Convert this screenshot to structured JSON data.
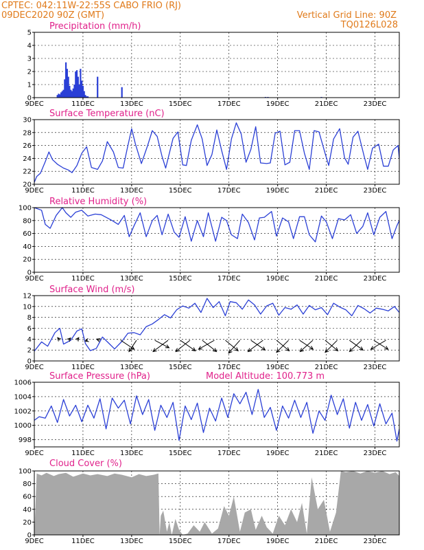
{
  "header": {
    "line1": "CPTEC:   042:11W-22:55S   CABO FRIO (RJ)",
    "line2": "09DEC2020 90Z (GMT)",
    "grid_note": "Vertical Grid Line: 90Z",
    "code": "TQ0126L028"
  },
  "colors": {
    "header": "#e07a1a",
    "title": "#e0208a",
    "series": "#2a3fd6",
    "cloud": "#a8a8a8"
  },
  "x_axis": {
    "domain_days": [
      0,
      15
    ],
    "ticks": [
      "9DEC",
      "11DEC",
      "13DEC",
      "15DEC",
      "17DEC",
      "19DEC",
      "21DEC",
      "23DEC"
    ],
    "tick_days": [
      0,
      2,
      4,
      6,
      8,
      10,
      12,
      14
    ]
  },
  "chart_data": [
    {
      "id": "precip",
      "type": "bar",
      "title": "Precipitation (mm/h)",
      "ylim": [
        0,
        5
      ],
      "yticks": [
        0,
        1,
        2,
        3,
        4,
        5
      ],
      "x_unit": "days since 9DEC 18Z",
      "x": [
        0.95,
        1.0,
        1.05,
        1.1,
        1.15,
        1.2,
        1.25,
        1.3,
        1.35,
        1.4,
        1.45,
        1.5,
        1.55,
        1.6,
        1.65,
        1.7,
        1.75,
        1.8,
        1.85,
        1.9,
        1.95,
        2.0,
        2.05,
        2.1,
        2.15,
        2.2,
        2.6,
        3.6,
        9.5,
        9.6,
        11.8
      ],
      "values": [
        0.2,
        0.3,
        0.25,
        0.4,
        0.5,
        0.6,
        1.4,
        2.7,
        2.2,
        1.6,
        0.9,
        0.6,
        0.5,
        0.7,
        1.0,
        2.0,
        2.1,
        1.6,
        1.0,
        2.2,
        1.3,
        0.9,
        0.5,
        0.2,
        0.1,
        0.1,
        1.6,
        0.8,
        0.05,
        0.05,
        0.05
      ]
    },
    {
      "id": "temp",
      "type": "line",
      "title": "Surface Temperature (nC)",
      "ylim": [
        20,
        30
      ],
      "yticks": [
        20,
        22,
        24,
        26,
        28,
        30
      ],
      "x": [
        0,
        0.1,
        0.25,
        0.45,
        0.6,
        0.75,
        0.95,
        1.2,
        1.4,
        1.55,
        1.75,
        1.95,
        2.15,
        2.35,
        2.6,
        2.8,
        3.0,
        3.25,
        3.45,
        3.65,
        3.8,
        4.0,
        4.15,
        4.4,
        4.65,
        4.85,
        5.05,
        5.25,
        5.4,
        5.7,
        5.9,
        6.1,
        6.25,
        6.45,
        6.7,
        6.9,
        7.1,
        7.3,
        7.5,
        7.7,
        7.9,
        8.1,
        8.3,
        8.5,
        8.7,
        8.9,
        9.1,
        9.3,
        9.55,
        9.7,
        9.9,
        10.1,
        10.3,
        10.5,
        10.7,
        10.9,
        11.1,
        11.3,
        11.5,
        11.7,
        11.95,
        12.1,
        12.3,
        12.55,
        12.75,
        12.9,
        13.1,
        13.3,
        13.55,
        13.7,
        13.9,
        14.15,
        14.35,
        14.55,
        14.75,
        14.95,
        15.0
      ],
      "values": [
        20.3,
        21.2,
        21.7,
        23.5,
        25.0,
        23.8,
        23.1,
        22.5,
        22.2,
        21.8,
        22.9,
        24.8,
        25.8,
        22.6,
        22.3,
        23.6,
        26.6,
        25.0,
        22.6,
        22.5,
        25.2,
        28.6,
        26.3,
        23.2,
        25.9,
        28.3,
        27.4,
        24.3,
        22.5,
        27.1,
        28.1,
        23.0,
        22.9,
        26.8,
        29.2,
        27.0,
        22.9,
        24.6,
        28.4,
        25.2,
        22.3,
        27.0,
        29.5,
        27.8,
        23.4,
        25.4,
        28.9,
        23.3,
        23.2,
        23.3,
        27.9,
        28.2,
        23.0,
        23.4,
        28.3,
        28.3,
        24.8,
        22.3,
        28.3,
        28.1,
        24.8,
        22.9,
        27.0,
        28.6,
        24.1,
        23.1,
        27.3,
        28.2,
        24.4,
        22.3,
        25.6,
        26.2,
        22.8,
        22.8,
        25.3,
        26.0,
        24.0
      ]
    },
    {
      "id": "rh",
      "type": "line",
      "title": "Relative Humidity (%)",
      "ylim": [
        0,
        100
      ],
      "yticks": [
        0,
        20,
        40,
        60,
        80,
        100
      ],
      "x": [
        0,
        0.3,
        0.45,
        0.65,
        0.9,
        1.15,
        1.3,
        1.5,
        1.7,
        1.95,
        2.2,
        2.5,
        2.75,
        2.95,
        3.2,
        3.45,
        3.7,
        3.9,
        4.1,
        4.35,
        4.6,
        4.85,
        5.05,
        5.25,
        5.5,
        5.75,
        5.95,
        6.2,
        6.45,
        6.7,
        6.95,
        7.15,
        7.45,
        7.7,
        7.9,
        8.1,
        8.35,
        8.55,
        8.8,
        9.05,
        9.25,
        9.45,
        9.75,
        9.95,
        10.2,
        10.45,
        10.65,
        10.9,
        11.1,
        11.3,
        11.55,
        11.8,
        12.0,
        12.25,
        12.5,
        12.75,
        13.0,
        13.25,
        13.5,
        13.7,
        13.95,
        14.2,
        14.45,
        14.7,
        14.9,
        15.0
      ],
      "values": [
        100,
        96,
        74,
        68,
        88,
        100,
        92,
        85,
        93,
        96,
        87,
        90,
        89,
        85,
        80,
        74,
        88,
        55,
        72,
        92,
        55,
        80,
        88,
        58,
        90,
        62,
        54,
        86,
        48,
        80,
        55,
        92,
        48,
        85,
        80,
        58,
        52,
        90,
        77,
        50,
        84,
        85,
        94,
        56,
        84,
        78,
        52,
        86,
        86,
        58,
        47,
        87,
        78,
        52,
        83,
        81,
        89,
        60,
        71,
        92,
        58,
        85,
        94,
        52,
        72,
        80
      ]
    },
    {
      "id": "wind",
      "type": "line",
      "title": "Surface Wind (m/s)",
      "ylim": [
        0,
        12
      ],
      "yticks": [
        0,
        2,
        4,
        6,
        8,
        10,
        12
      ],
      "x": [
        0,
        0.3,
        0.55,
        0.85,
        1.05,
        1.2,
        1.5,
        1.75,
        1.95,
        2.1,
        2.3,
        2.55,
        2.8,
        3.05,
        3.3,
        3.6,
        3.85,
        4.1,
        4.35,
        4.6,
        4.85,
        5.1,
        5.35,
        5.6,
        5.85,
        6.1,
        6.35,
        6.6,
        6.85,
        7.1,
        7.35,
        7.6,
        7.85,
        8.05,
        8.3,
        8.55,
        8.8,
        9.05,
        9.3,
        9.55,
        9.8,
        10.05,
        10.3,
        10.55,
        10.8,
        11.05,
        11.3,
        11.55,
        11.8,
        12.05,
        12.3,
        12.55,
        12.8,
        13.05,
        13.3,
        13.55,
        13.8,
        14.05,
        14.3,
        14.55,
        14.8,
        15.0
      ],
      "values": [
        1.8,
        3.5,
        2.7,
        5.2,
        6.0,
        3.1,
        3.8,
        5.5,
        5.9,
        3.2,
        1.9,
        2.3,
        4.4,
        3.3,
        2.2,
        3.6,
        5.1,
        5.2,
        4.8,
        6.3,
        6.8,
        7.6,
        8.5,
        7.9,
        9.4,
        10.1,
        9.7,
        10.6,
        8.9,
        11.5,
        9.8,
        10.9,
        8.3,
        10.9,
        10.7,
        9.5,
        11.2,
        10.3,
        8.6,
        10.1,
        10.6,
        8.4,
        9.8,
        9.5,
        10.3,
        8.6,
        10.2,
        9.4,
        9.8,
        8.5,
        10.6,
        9.9,
        9.4,
        8.3,
        10.2,
        9.6,
        8.8,
        9.7,
        9.5,
        9.2,
        10.0,
        8.9
      ]
    },
    {
      "id": "pressure",
      "type": "line",
      "title": "Surface Pressure (hPa)",
      "note": "Model Altitude: 100.773 m",
      "ylim": [
        997,
        1006
      ],
      "yticks": [
        998,
        1000,
        1002,
        1004,
        1006
      ],
      "x": [
        0,
        0.2,
        0.45,
        0.7,
        0.95,
        1.2,
        1.45,
        1.7,
        1.95,
        2.2,
        2.45,
        2.7,
        2.95,
        3.2,
        3.45,
        3.7,
        3.95,
        4.2,
        4.45,
        4.7,
        4.95,
        5.2,
        5.45,
        5.7,
        5.95,
        6.2,
        6.45,
        6.7,
        6.95,
        7.2,
        7.45,
        7.7,
        7.95,
        8.2,
        8.45,
        8.7,
        8.95,
        9.2,
        9.45,
        9.7,
        9.95,
        10.2,
        10.45,
        10.7,
        10.95,
        11.2,
        11.45,
        11.7,
        11.95,
        12.2,
        12.45,
        12.7,
        12.95,
        13.2,
        13.45,
        13.7,
        13.95,
        14.2,
        14.45,
        14.7,
        14.9,
        15.0
      ],
      "values": [
        1000.7,
        1001.2,
        1001.0,
        1002.7,
        1000.4,
        1003.6,
        1001.3,
        1002.8,
        1000.5,
        1002.8,
        1001.0,
        1003.7,
        999.5,
        1003.8,
        1002.4,
        1003.5,
        1000.2,
        1004.1,
        1001.5,
        1003.6,
        999.3,
        1002.8,
        1001.1,
        1003.2,
        997.9,
        1002.7,
        1000.8,
        1003.1,
        999.0,
        1002.4,
        1000.6,
        1003.8,
        1001.1,
        1004.4,
        1003.0,
        1004.6,
        1001.5,
        1005.0,
        1001.1,
        1002.5,
        999.3,
        1002.7,
        1001.0,
        1003.5,
        1001.1,
        1003.2,
        998.9,
        1002.0,
        1000.7,
        1004.2,
        1001.5,
        1003.7,
        999.6,
        1003.2,
        1000.7,
        1002.9,
        999.9,
        1003.0,
        1000.2,
        1001.7,
        997.8,
        999.5
      ]
    },
    {
      "id": "cloud",
      "type": "area",
      "title": "Cloud Cover (%)",
      "ylim": [
        0,
        100
      ],
      "yticks": [
        0,
        20,
        40,
        60,
        80,
        100
      ],
      "x": [
        0,
        0.1,
        0.3,
        0.5,
        0.8,
        1.0,
        1.3,
        1.6,
        2.0,
        2.3,
        2.6,
        3.0,
        3.3,
        3.6,
        4.0,
        4.3,
        4.6,
        4.9,
        5.1,
        5.15,
        5.2,
        5.3,
        5.45,
        5.55,
        5.65,
        5.8,
        5.95,
        6.1,
        6.3,
        6.55,
        6.8,
        7.0,
        7.3,
        7.55,
        7.8,
        8.0,
        8.2,
        8.45,
        8.65,
        8.9,
        9.1,
        9.35,
        9.55,
        9.8,
        10.05,
        10.3,
        10.55,
        10.8,
        11.0,
        11.2,
        11.4,
        11.65,
        11.9,
        12.15,
        12.4,
        12.6,
        12.8,
        13.1,
        13.4,
        13.7,
        14.0,
        14.3,
        14.6,
        14.85,
        15.0
      ],
      "values": [
        0,
        96,
        93,
        97,
        92,
        95,
        97,
        91,
        96,
        93,
        95,
        92,
        96,
        94,
        90,
        95,
        92,
        94,
        96,
        0,
        30,
        38,
        5,
        20,
        0,
        25,
        8,
        0,
        2,
        15,
        5,
        20,
        2,
        10,
        45,
        30,
        60,
        5,
        35,
        40,
        8,
        30,
        12,
        2,
        30,
        15,
        40,
        20,
        50,
        2,
        90,
        40,
        55,
        5,
        35,
        100,
        98,
        100,
        96,
        100,
        97,
        100,
        95,
        98,
        92
      ]
    }
  ],
  "wind_vectors": {
    "label": "wind direction arrows (toward)",
    "x": [
      1.05,
      1.4,
      1.75,
      2.2,
      2.7,
      3.55,
      4.2,
      4.95,
      5.5,
      6.0,
      6.4,
      6.9,
      7.4,
      7.85,
      8.45,
      8.9,
      9.4,
      9.95,
      10.45,
      10.9,
      11.45,
      11.95,
      12.45,
      12.95,
      13.45,
      13.95,
      14.45
    ],
    "u": [
      -0.3,
      0.3,
      0.25,
      -0.35,
      -0.45,
      1.8,
      -1.0,
      1.9,
      -2.0,
      2.0,
      -1.9,
      1.9,
      -2.1,
      1.7,
      -1.5,
      1.9,
      -2.0,
      1.7,
      -1.6,
      1.8,
      -1.7,
      1.7,
      -1.6,
      1.8,
      -1.6,
      1.9,
      -2.0
    ],
    "v": [
      0.35,
      0.3,
      0.35,
      -0.1,
      0.15,
      -1.2,
      -1.5,
      -1.0,
      -1.5,
      -1.4,
      -1.5,
      -1.5,
      -1.2,
      -1.4,
      -1.7,
      -1.3,
      -1.5,
      -1.4,
      -1.6,
      -1.2,
      -1.5,
      -1.4,
      -1.6,
      -1.3,
      -1.5,
      -1.2,
      -1.2
    ]
  }
}
